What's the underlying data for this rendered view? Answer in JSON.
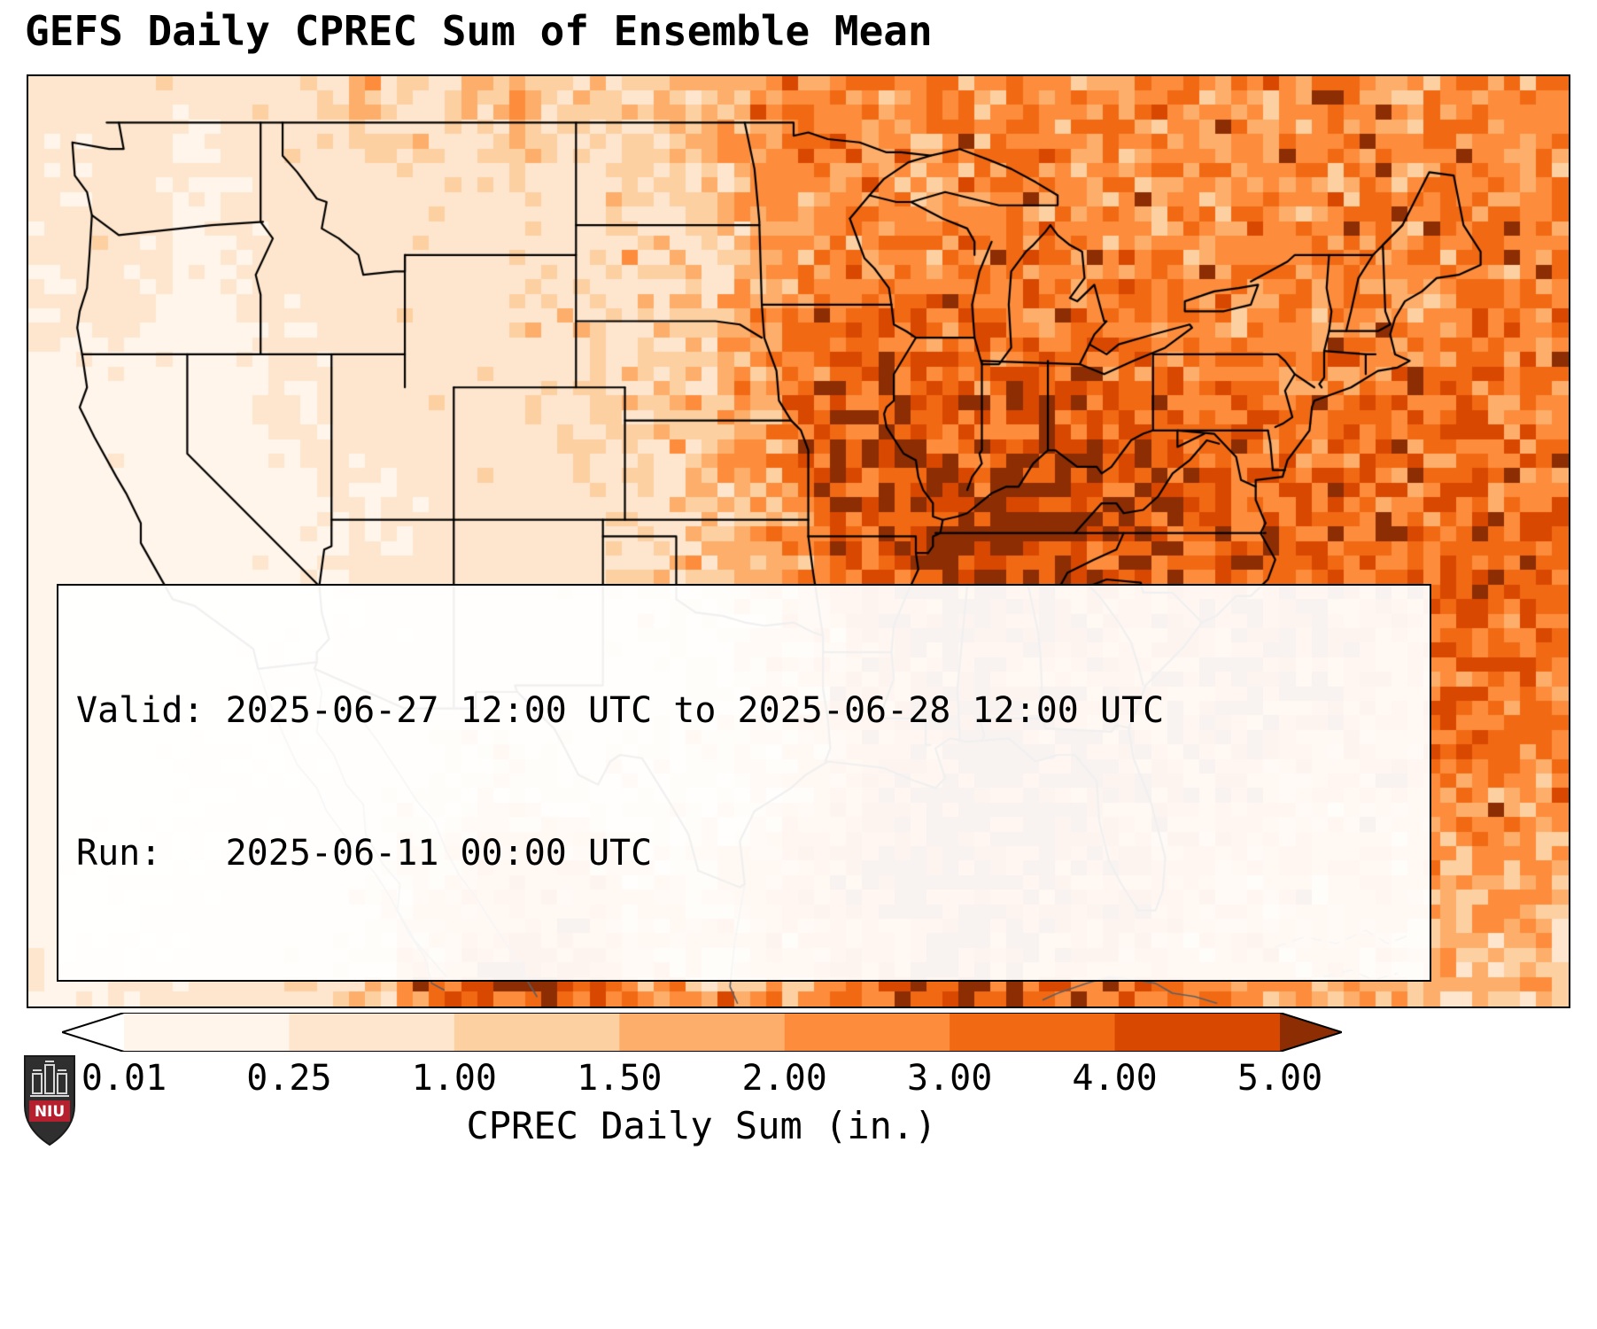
{
  "title": "GEFS Daily CPREC Sum of Ensemble Mean",
  "info_box": {
    "valid_line": "Valid: 2025-06-27 12:00 UTC to 2025-06-28 12:00 UTC",
    "run_line": "Run:   2025-06-11 00:00 UTC"
  },
  "colorbar": {
    "label": "CPREC Daily Sum (in.)",
    "ticks": [
      "0.01",
      "0.25",
      "1.00",
      "1.50",
      "2.00",
      "3.00",
      "4.00",
      "5.00"
    ],
    "thresholds": [
      0.01,
      0.25,
      1.0,
      1.5,
      2.0,
      3.0,
      4.0,
      5.0
    ],
    "under_color": "#ffffff",
    "colors": [
      "#fff5eb",
      "#fee6ce",
      "#fdd0a2",
      "#fdae6b",
      "#fd8d3c",
      "#f16913",
      "#d94801"
    ],
    "over_color": "#8c2d04"
  },
  "logo": {
    "text": "NIU",
    "red": "#b61f2e"
  },
  "chart_data": {
    "type": "heatmap",
    "title": "GEFS Daily CPREC Sum of Ensemble Mean",
    "units": "inches",
    "valid": "2025-06-27 12:00 UTC to 2025-06-28 12:00 UTC",
    "run": "2025-06-11 00:00 UTC",
    "colorbar_label": "CPREC Daily Sum (in.)",
    "levels": [
      0.01,
      0.25,
      1.0,
      1.5,
      2.0,
      3.0,
      4.0,
      5.0
    ],
    "extent": {
      "lon_min": -126.5,
      "lon_max": -63.5,
      "lat_min": 22.3,
      "lat_max": 50.4
    },
    "grid_note": "approximate ensemble-mean daily precip (in.); 24 columns west-to-east, 16 rows north-to-south",
    "grid_inches": [
      [
        0.4,
        0.6,
        0.3,
        0.5,
        0.9,
        1.4,
        0.7,
        1.9,
        1.2,
        0.9,
        1.6,
        2.3,
        2.6,
        2.1,
        2.3,
        2.6,
        2.1,
        2.3,
        2.6,
        2.1,
        2.6,
        2.3,
        2.8,
        2.3
      ],
      [
        0.3,
        0.5,
        0.2,
        0.4,
        0.5,
        0.8,
        0.6,
        0.9,
        0.7,
        0.9,
        1.3,
        2.0,
        2.3,
        2.1,
        2.4,
        2.6,
        2.2,
        2.4,
        2.0,
        2.4,
        2.6,
        2.2,
        2.8,
        2.4
      ],
      [
        0.4,
        0.6,
        0.2,
        0.3,
        0.4,
        0.6,
        0.5,
        0.8,
        0.6,
        0.8,
        1.1,
        1.9,
        2.2,
        2.3,
        2.5,
        2.7,
        2.4,
        2.2,
        2.1,
        2.3,
        2.5,
        2.3,
        2.7,
        2.4
      ],
      [
        0.3,
        0.4,
        0.15,
        0.3,
        0.4,
        0.5,
        0.6,
        0.8,
        0.7,
        0.9,
        1.2,
        1.8,
        2.4,
        2.6,
        2.8,
        2.9,
        2.6,
        2.3,
        2.2,
        2.4,
        2.6,
        2.4,
        2.8,
        2.5
      ],
      [
        0.2,
        0.3,
        0.1,
        0.2,
        0.3,
        0.5,
        0.6,
        0.7,
        0.8,
        1.0,
        1.3,
        2.0,
        3.2,
        3.6,
        3.0,
        3.0,
        3.2,
        2.8,
        2.5,
        2.6,
        2.8,
        2.6,
        3.0,
        2.7
      ],
      [
        0.1,
        0.2,
        0.015,
        0.2,
        0.3,
        0.4,
        0.5,
        0.7,
        0.9,
        1.1,
        1.4,
        2.2,
        3.8,
        4.2,
        3.4,
        3.6,
        3.8,
        3.2,
        2.8,
        2.7,
        3.0,
        2.8,
        3.2,
        2.8
      ],
      [
        0.1,
        0.15,
        0.015,
        0.15,
        0.25,
        0.4,
        0.5,
        0.6,
        0.8,
        1.0,
        1.3,
        2.0,
        3.9,
        4.5,
        4.2,
        4.6,
        4.4,
        4.0,
        3.4,
        3.0,
        3.2,
        3.0,
        3.4,
        3.0
      ],
      [
        0.02,
        0.1,
        0.015,
        0.1,
        0.2,
        0.3,
        0.4,
        0.5,
        0.7,
        0.9,
        1.2,
        1.8,
        3.2,
        4.4,
        5.2,
        5.5,
        4.8,
        4.0,
        3.6,
        3.4,
        3.6,
        3.2,
        3.6,
        3.1
      ],
      [
        0.03,
        0.1,
        0.02,
        0.1,
        0.2,
        0.3,
        0.4,
        0.5,
        0.6,
        0.8,
        1.1,
        1.6,
        2.8,
        4.2,
        5.6,
        5.2,
        4.4,
        3.8,
        4.2,
        4.8,
        4.0,
        3.4,
        3.8,
        3.2
      ],
      [
        0.03,
        0.1,
        0.1,
        0.15,
        0.25,
        0.3,
        0.4,
        0.5,
        0.6,
        0.8,
        1.0,
        1.5,
        2.4,
        3.6,
        4.4,
        4.0,
        3.6,
        3.4,
        4.4,
        4.8,
        3.8,
        3.4,
        3.6,
        3.0
      ],
      [
        0.05,
        0.1,
        0.1,
        0.2,
        0.3,
        0.4,
        0.5,
        0.4,
        0.5,
        0.7,
        0.9,
        1.3,
        2.2,
        3.8,
        4.6,
        4.2,
        3.8,
        4.0,
        4.4,
        4.0,
        3.5,
        3.2,
        3.4,
        2.8
      ],
      [
        0.05,
        0.1,
        0.2,
        0.3,
        0.4,
        0.5,
        0.8,
        1.2,
        0.6,
        0.8,
        1.0,
        1.2,
        1.8,
        3.4,
        5.4,
        5.6,
        4.6,
        3.8,
        4.2,
        3.6,
        3.2,
        3.0,
        3.2,
        2.6
      ],
      [
        0.1,
        0.15,
        0.2,
        0.3,
        0.4,
        0.6,
        0.9,
        1.4,
        1.0,
        0.9,
        1.1,
        1.6,
        2.6,
        4.6,
        5.8,
        5.6,
        4.8,
        3.6,
        3.0,
        2.8,
        2.6,
        2.8,
        2.4,
        2.2
      ],
      [
        0.1,
        0.2,
        0.3,
        0.4,
        0.5,
        0.8,
        1.6,
        2.8,
        2.2,
        1.2,
        1.5,
        2.2,
        3.4,
        5.2,
        5.8,
        5.4,
        4.4,
        3.2,
        2.8,
        2.6,
        2.4,
        2.2,
        2.0,
        1.8
      ],
      [
        0.15,
        0.25,
        0.35,
        0.5,
        0.7,
        1.0,
        2.2,
        4.2,
        3.2,
        1.8,
        1.8,
        2.4,
        3.0,
        4.4,
        5.6,
        5.2,
        3.8,
        3.0,
        2.6,
        2.2,
        2.0,
        1.9,
        1.7,
        1.5
      ],
      [
        0.2,
        0.3,
        0.4,
        0.6,
        0.9,
        1.4,
        2.6,
        4.6,
        3.6,
        2.2,
        1.6,
        2.0,
        2.6,
        3.8,
        4.8,
        4.4,
        3.4,
        2.8,
        2.4,
        2.0,
        1.8,
        1.6,
        1.4,
        1.3
      ]
    ]
  }
}
